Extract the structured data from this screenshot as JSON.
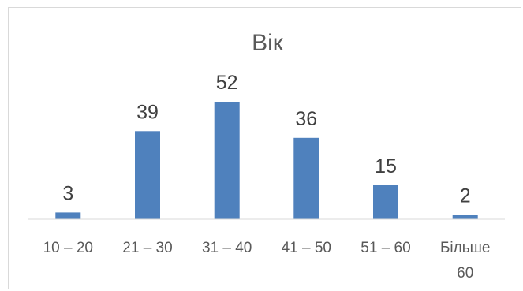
{
  "chart_data": {
    "type": "bar",
    "title": "Вік",
    "categories": [
      "10 – 20",
      "21 – 30",
      "31 – 40",
      "41 – 50",
      "51 – 60",
      "Більше 60"
    ],
    "values": [
      3,
      39,
      52,
      36,
      15,
      2
    ],
    "data_labels": true,
    "grid": false,
    "legend": "none",
    "xlabel": "",
    "ylabel": "",
    "ylim": [
      0,
      52
    ],
    "bar_color": "#4f81bd",
    "axis_color": "#d9d9d9"
  }
}
